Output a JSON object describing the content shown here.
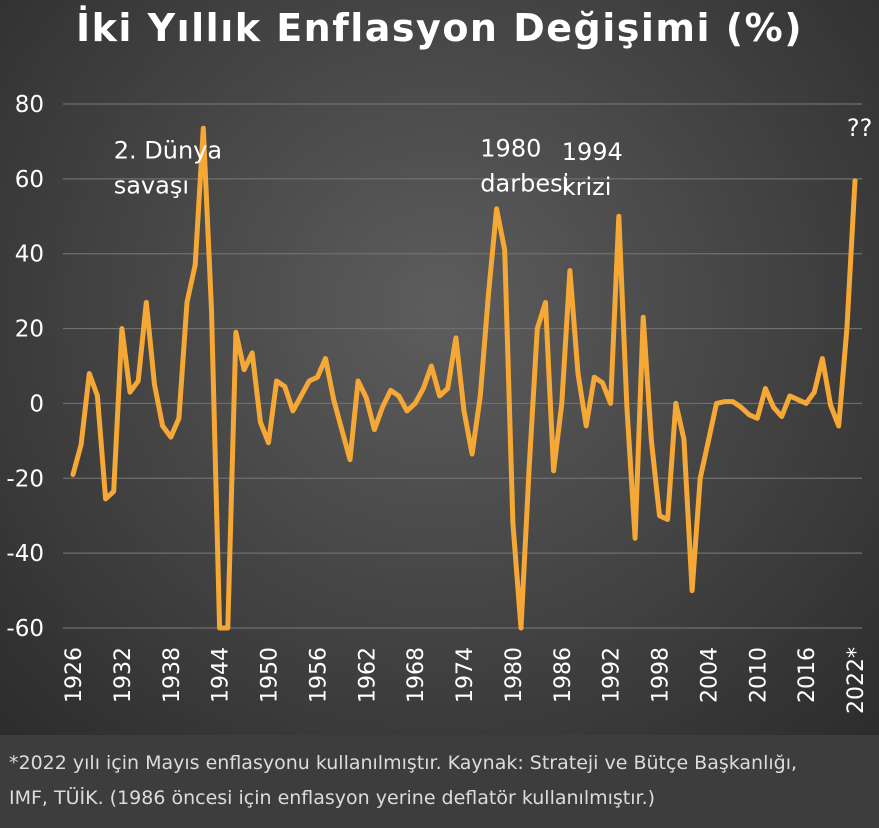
{
  "colors": {
    "line": "#f5a836",
    "grid": "#6f6f6f",
    "text": "#ffffff",
    "footnote_text": "#dcdcdc"
  },
  "footnote": {
    "line1": "*2022 yılı için Mayıs enflasyonu kullanılmıştır. Kaynak: Strateji ve Bütçe Başkanlığı,",
    "line2": "IMF, TÜİK. (1986 öncesi için enflasyon yerine deflatör kullanılmıştır.)"
  },
  "chart_data": {
    "type": "line",
    "title": "İki Yıllık Enflasyon Değişimi (%)",
    "xlabel": "",
    "ylabel": "",
    "xlim": [
      1926,
      2022
    ],
    "ylim": [
      -60,
      80
    ],
    "grid": true,
    "legend": "none",
    "yticks": [
      80,
      60,
      40,
      20,
      0,
      -20,
      -40,
      -60
    ],
    "xticks": [
      {
        "year": 1926,
        "label": "1926"
      },
      {
        "year": 1932,
        "label": "1932"
      },
      {
        "year": 1938,
        "label": "1938"
      },
      {
        "year": 1944,
        "label": "1944"
      },
      {
        "year": 1950,
        "label": "1950"
      },
      {
        "year": 1956,
        "label": "1956"
      },
      {
        "year": 1962,
        "label": "1962"
      },
      {
        "year": 1968,
        "label": "1968"
      },
      {
        "year": 1974,
        "label": "1974"
      },
      {
        "year": 1980,
        "label": "1980"
      },
      {
        "year": 1986,
        "label": "1986"
      },
      {
        "year": 1992,
        "label": "1992"
      },
      {
        "year": 1998,
        "label": "1998"
      },
      {
        "year": 2004,
        "label": "2004"
      },
      {
        "year": 2010,
        "label": "2010"
      },
      {
        "year": 2016,
        "label": "2016"
      },
      {
        "year": 2022,
        "label": "2022*"
      }
    ],
    "x": [
      1926,
      1927,
      1928,
      1929,
      1930,
      1931,
      1932,
      1933,
      1934,
      1935,
      1936,
      1937,
      1938,
      1939,
      1940,
      1941,
      1942,
      1943,
      1944,
      1945,
      1946,
      1947,
      1948,
      1949,
      1950,
      1951,
      1952,
      1953,
      1954,
      1955,
      1956,
      1957,
      1958,
      1959,
      1960,
      1961,
      1962,
      1963,
      1964,
      1965,
      1966,
      1967,
      1968,
      1969,
      1970,
      1971,
      1972,
      1973,
      1974,
      1975,
      1976,
      1977,
      1978,
      1979,
      1980,
      1981,
      1982,
      1983,
      1984,
      1985,
      1986,
      1987,
      1988,
      1989,
      1990,
      1991,
      1992,
      1993,
      1994,
      1995,
      1996,
      1997,
      1998,
      1999,
      2000,
      2001,
      2002,
      2003,
      2004,
      2005,
      2006,
      2007,
      2008,
      2009,
      2010,
      2011,
      2012,
      2013,
      2014,
      2015,
      2016,
      2017,
      2018,
      2019,
      2020,
      2021,
      2022
    ],
    "series": [
      {
        "values": [
          -19,
          -11,
          8,
          2,
          -25.5,
          -23.5,
          20,
          3,
          6,
          27,
          5,
          -6,
          -9,
          -4,
          27,
          37,
          73.5,
          25,
          -60,
          -60,
          19,
          9,
          13.5,
          -5,
          -10.5,
          6,
          4.5,
          -2,
          2,
          6,
          7,
          12,
          1,
          -7,
          -15,
          6,
          1.5,
          -7,
          -1,
          3.5,
          2,
          -2,
          0,
          4,
          10,
          2,
          4,
          17.5,
          -2,
          -13.5,
          2,
          29,
          52,
          41,
          -32,
          -60,
          -17,
          20,
          27,
          -18,
          0,
          35.5,
          8,
          -6,
          7,
          5.5,
          0,
          50,
          -1,
          -36,
          23,
          -10,
          -30,
          -31,
          0,
          -9.5,
          -50,
          -20,
          -10,
          0,
          0.5,
          0.5,
          -1,
          -3,
          -4,
          4,
          -1,
          -3.5,
          2,
          1,
          0,
          3,
          12,
          -0.5,
          -6,
          20,
          59.5
        ]
      }
    ],
    "annotations": [
      {
        "x": 1931,
        "y": 65.5,
        "lines": [
          "2. Dünya",
          "savaşı"
        ]
      },
      {
        "x": 1976,
        "y": 66,
        "lines": [
          "1980",
          "darbesi"
        ]
      },
      {
        "x": 1986,
        "y": 65,
        "lines": [
          "1994",
          "krizi"
        ]
      },
      {
        "x": 2021,
        "y": 71.5,
        "lines": [
          "??"
        ]
      }
    ]
  }
}
